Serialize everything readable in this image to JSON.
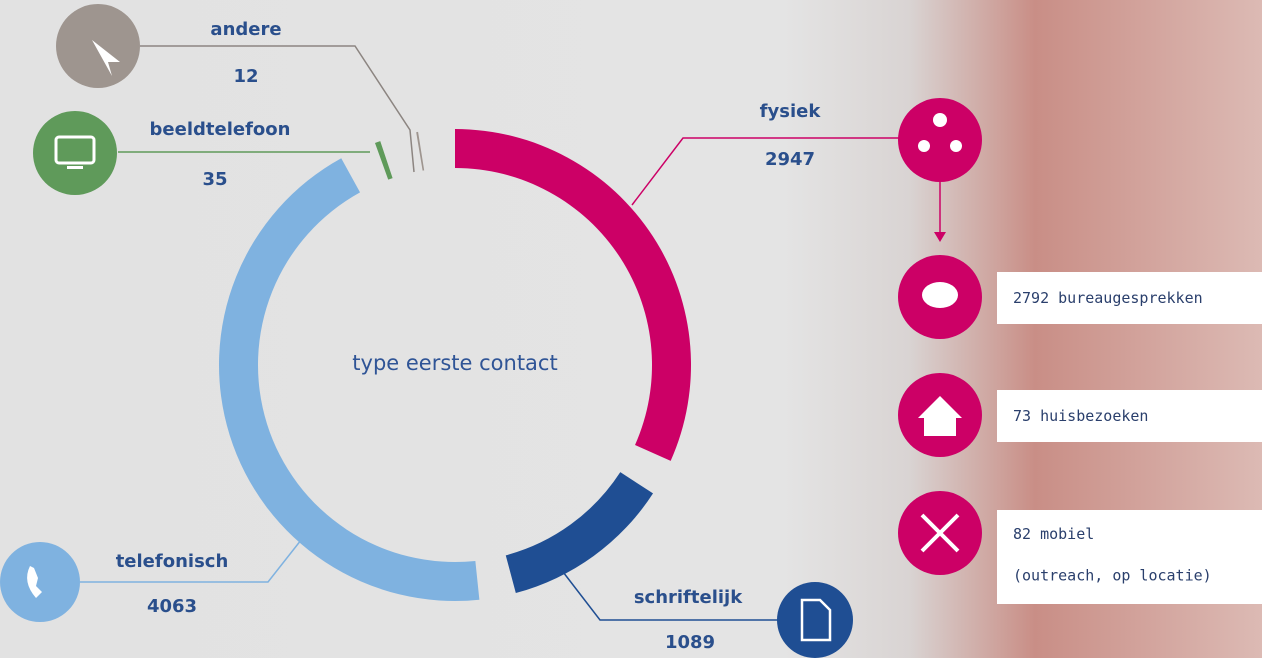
{
  "chart_data": {
    "type": "donut",
    "title": "type eerste contact",
    "categories": [
      "fysiek",
      "schriftelijk",
      "telefonisch",
      "beeldtelefoon",
      "andere"
    ],
    "values": [
      2947,
      1089,
      4063,
      35,
      12
    ],
    "colors": [
      "#cc0066",
      "#1f4e93",
      "#7fb2e0",
      "#5f9a5a",
      "#9e958f"
    ],
    "subitems": [
      {
        "value": 2792,
        "label": "bureaugesprekken"
      },
      {
        "value": 73,
        "label": "huisbezoeken"
      },
      {
        "value": 82,
        "label": "mobiel",
        "note": "(outreach, op locatie)"
      }
    ]
  }
}
